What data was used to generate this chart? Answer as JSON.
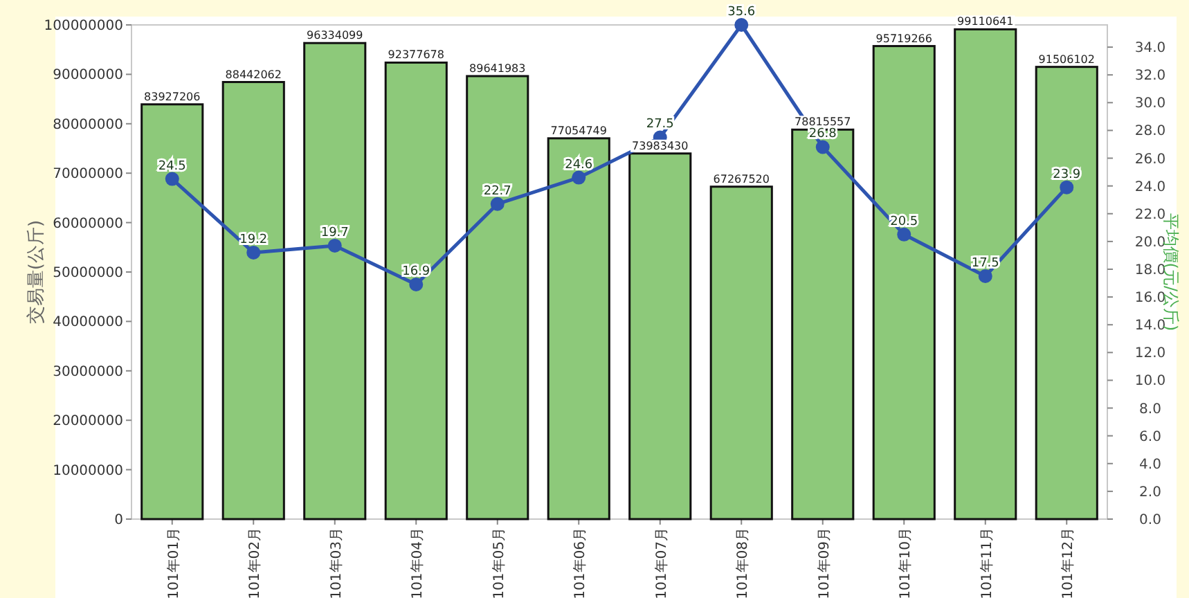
{
  "chart_data": {
    "type": "bar",
    "categories": [
      "101年01月",
      "101年02月",
      "101年03月",
      "101年04月",
      "101年05月",
      "101年06月",
      "101年07月",
      "101年08月",
      "101年09月",
      "101年10月",
      "101年11月",
      "101年12月"
    ],
    "series": [
      {
        "color": "#8dc97a",
        "values": [
          83927206,
          88442062,
          96334099,
          92377678,
          89641983,
          77054749,
          73983430,
          67267520,
          78815557,
          95719266,
          99110641,
          91506102
        ]
      },
      {
        "type": "line",
        "axis": "y2",
        "color": "#2e55b0",
        "marker": "circle",
        "values": [
          24.5,
          19.2,
          19.7,
          16.9,
          22.7,
          24.6,
          27.5,
          35.6,
          26.8,
          20.5,
          17.5,
          23.9
        ]
      }
    ],
    "ylabel": "交易量(公斤)",
    "y2label": "平均價(元/公斤)",
    "ylim": [
      0,
      100000000
    ],
    "yticks": [
      0,
      10000000,
      20000000,
      30000000,
      40000000,
      50000000,
      60000000,
      70000000,
      80000000,
      90000000,
      100000000
    ],
    "y2lim": [
      0,
      35.6
    ],
    "y2ticks": [
      {
        "value": 0,
        "label": "0.0"
      },
      {
        "value": 2,
        "label": "2.0"
      },
      {
        "value": 4,
        "label": "4.0"
      },
      {
        "value": 6,
        "label": "6.0"
      },
      {
        "value": 8,
        "label": "8.0"
      },
      {
        "value": 10,
        "label": "10.0"
      },
      {
        "value": 12,
        "label": "12.0"
      },
      {
        "value": 14,
        "label": "14.0"
      },
      {
        "value": 16,
        "label": "16.0"
      },
      {
        "value": 18,
        "label": "18.0"
      },
      {
        "value": 20,
        "label": "20.0"
      },
      {
        "value": 22,
        "label": "22.0"
      },
      {
        "value": 24,
        "label": "24.0"
      },
      {
        "value": 26,
        "label": "26.0"
      },
      {
        "value": 28,
        "label": "28.0"
      },
      {
        "value": 30,
        "label": "30.0"
      },
      {
        "value": 32,
        "label": "32.0"
      },
      {
        "value": 34,
        "label": "34.0"
      }
    ],
    "data_labels": true
  }
}
